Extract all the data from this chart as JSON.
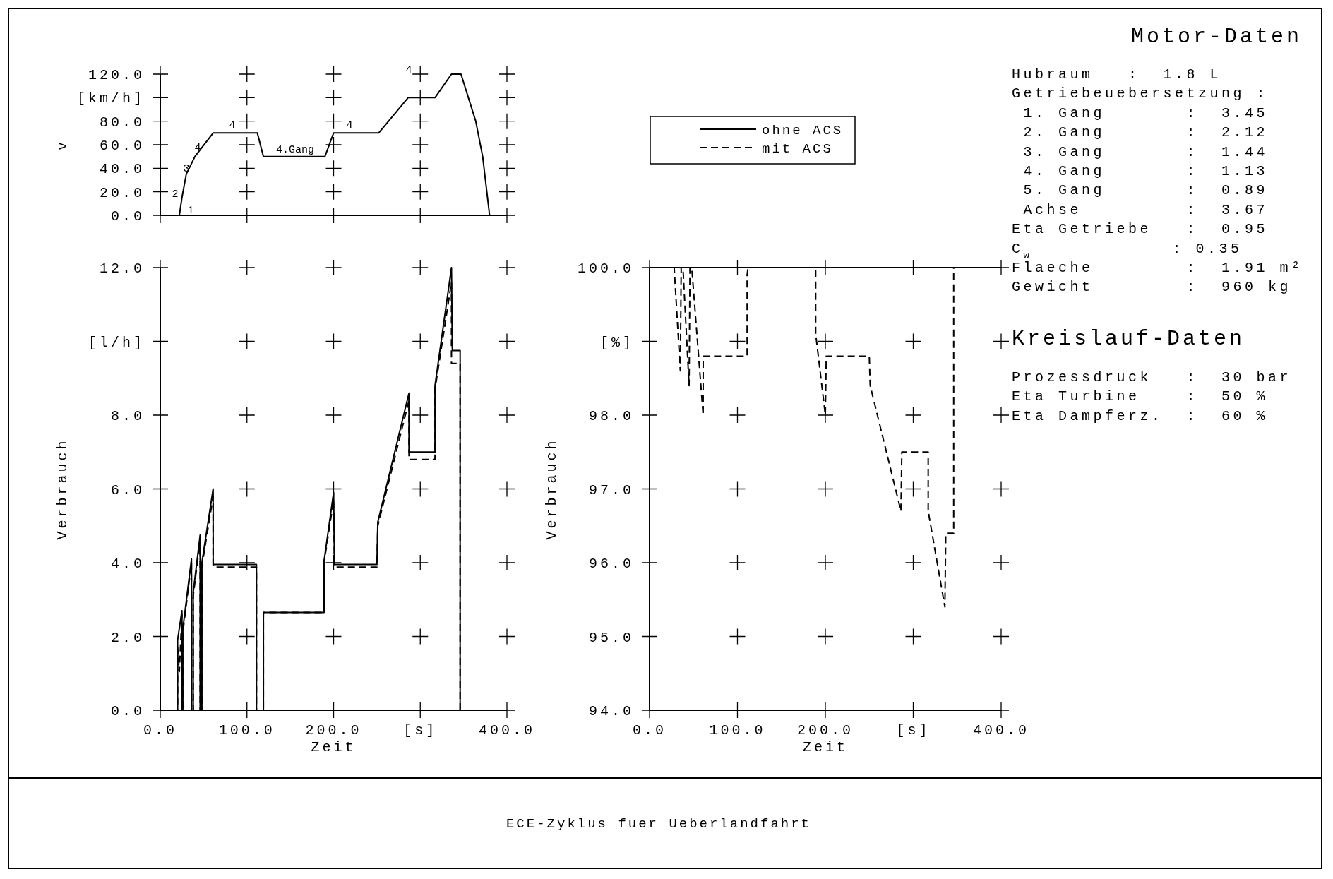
{
  "chart_data": [
    {
      "type": "line",
      "ylabel": "v",
      "xlim": [
        0,
        400
      ],
      "ylim": [
        0,
        120
      ],
      "xticks": [
        0,
        100,
        200,
        300,
        400
      ],
      "yticks": [
        {
          "value": 0,
          "label": "0.0"
        },
        {
          "value": 20,
          "label": "20.0"
        },
        {
          "value": 40,
          "label": "40.0"
        },
        {
          "value": 60,
          "label": "60.0"
        },
        {
          "value": 80,
          "label": "80.0"
        },
        {
          "value": 100,
          "label": "[km/h]"
        },
        {
          "value": 120,
          "label": "120.0"
        }
      ],
      "tick_labels": "y",
      "grid": true,
      "line_style": "solid",
      "series": [
        {
          "color": "#000000",
          "x": [
            0,
            22,
            25,
            30,
            40,
            61,
            112,
            119,
            190,
            200,
            252,
            286,
            317,
            336,
            347,
            364,
            372,
            380,
            400
          ],
          "values": [
            0,
            0,
            15,
            35,
            50,
            70,
            70,
            50,
            50,
            70,
            70,
            100,
            100,
            120,
            120,
            80,
            50,
            0,
            0
          ]
        }
      ],
      "annotations": [
        "1",
        "2",
        "3",
        "4",
        "4",
        "4.Gang",
        "4",
        "4"
      ]
    },
    {
      "type": "line",
      "xlabel": "Zeit",
      "ylabel": "Verbrauch",
      "xlim": [
        0,
        400
      ],
      "ylim": [
        0,
        12
      ],
      "xticks": [
        {
          "value": 0,
          "label": "0.0"
        },
        {
          "value": 100,
          "label": "100.0"
        },
        {
          "value": 200,
          "label": "200.0"
        },
        {
          "value": 300,
          "label": "[s]"
        },
        {
          "value": 400,
          "label": "400.0"
        }
      ],
      "yticks": [
        {
          "value": 0,
          "label": "0.0"
        },
        {
          "value": 2,
          "label": "2.0"
        },
        {
          "value": 4,
          "label": "4.0"
        },
        {
          "value": 6,
          "label": "6.0"
        },
        {
          "value": 8,
          "label": "8.0"
        },
        {
          "value": 10,
          "label": "[l/h]"
        },
        {
          "value": 12,
          "label": "12.0"
        }
      ],
      "grid": true,
      "series": [
        {
          "color": "#000000",
          "line_style": "solid",
          "x": [
            0,
            20,
            20,
            25,
            25,
            26,
            26,
            36,
            36,
            38,
            38,
            46,
            46,
            48,
            48,
            61,
            61,
            111,
            111,
            119,
            119,
            189,
            189,
            200,
            201,
            250,
            251,
            287,
            287,
            317,
            317,
            336,
            337,
            346,
            346,
            400
          ],
          "values": [
            0,
            0,
            1.9,
            2.7,
            0,
            0,
            2.2,
            4.1,
            0,
            0,
            3.2,
            4.75,
            0,
            0,
            4.0,
            6.0,
            3.95,
            3.95,
            0,
            0,
            2.65,
            2.65,
            4.05,
            5.9,
            3.95,
            3.95,
            5.1,
            8.6,
            7.0,
            7.0,
            8.8,
            12.0,
            9.75,
            9.75,
            0,
            0
          ]
        },
        {
          "color": "#000000",
          "line_style": "dashed",
          "x": [
            0,
            20,
            20,
            22,
            25,
            25,
            26,
            26,
            36,
            36,
            38,
            38,
            46,
            46,
            48,
            48,
            61,
            61,
            111,
            111,
            119,
            119,
            189,
            189,
            200,
            201,
            250,
            251,
            287,
            287,
            317,
            317,
            336,
            336,
            346,
            346,
            400
          ],
          "values": [
            0,
            0,
            1.7,
            1.05,
            2.6,
            0,
            0,
            2.1,
            4.0,
            0,
            0,
            3.1,
            4.6,
            0,
            0,
            3.9,
            5.8,
            3.88,
            3.88,
            0,
            0,
            2.65,
            2.65,
            4.0,
            5.7,
            3.88,
            3.88,
            5.0,
            8.4,
            6.8,
            6.8,
            8.7,
            11.6,
            9.4,
            9.4,
            0,
            0
          ]
        }
      ]
    },
    {
      "type": "line",
      "xlabel": "Zeit",
      "ylabel": "Verbrauch",
      "xlim": [
        0,
        400
      ],
      "ylim": [
        94,
        100
      ],
      "xticks": [
        {
          "value": 0,
          "label": "0.0"
        },
        {
          "value": 100,
          "label": "100.0"
        },
        {
          "value": 200,
          "label": "200.0"
        },
        {
          "value": 300,
          "label": "[s]"
        },
        {
          "value": 400,
          "label": "400.0"
        }
      ],
      "yticks": [
        {
          "value": 94,
          "label": "94.0"
        },
        {
          "value": 95,
          "label": "95.0"
        },
        {
          "value": 96,
          "label": "96.0"
        },
        {
          "value": 97,
          "label": "97.0"
        },
        {
          "value": 98,
          "label": "98.0"
        },
        {
          "value": 99,
          "label": "[%]"
        },
        {
          "value": 100,
          "label": "100.0"
        }
      ],
      "grid": true,
      "legend": "top",
      "series": [
        {
          "name": "ohne ACS",
          "color": "#000000",
          "line_style": "solid",
          "x": [
            0,
            400
          ],
          "values": [
            100,
            100
          ]
        },
        {
          "name": "mit ACS",
          "color": "#000000",
          "line_style": "dashed",
          "x": [
            0,
            28,
            35,
            36,
            38,
            45,
            46,
            48,
            61,
            61,
            111,
            111,
            112,
            189,
            189,
            200,
            201,
            250,
            251,
            286,
            287,
            317,
            317,
            336,
            337,
            346,
            346,
            400
          ],
          "values": [
            100,
            100,
            98.6,
            100,
            100,
            98.4,
            100,
            100,
            98.0,
            98.8,
            98.8,
            99.9,
            100,
            100,
            99.1,
            98.0,
            98.8,
            98.8,
            98.4,
            96.7,
            97.5,
            97.5,
            96.7,
            95.4,
            96.4,
            96.4,
            100,
            100
          ]
        }
      ]
    },
    {
      "type": "other",
      "title": "Motor-Daten",
      "annotations": [
        "Hubraum   :  1.8 L",
        "Getriebeuebersetzung :",
        " 1. Gang       :  3.45",
        " 2. Gang       :  2.12",
        " 3. Gang       :  1.44",
        " 4. Gang       :  1.13",
        " 5. Gang       :  0.89",
        " Achse         :  3.67",
        "Eta Getriebe   :  0.95",
        "C$_{w}$            : 0.35",
        "Flaeche        :  1.91 m²",
        "Gewicht        :  960 kg"
      ]
    },
    {
      "type": "other",
      "title": "Kreislauf-Daten",
      "annotations": [
        "Prozessdruck   :  30 bar",
        "Eta Turbine    :  50 %",
        "Eta Dampferz.  :  60 %"
      ]
    },
    {
      "type": "other",
      "annotations": [
        "ECE-Zyklus fuer Ueberlandfahrt"
      ]
    }
  ]
}
